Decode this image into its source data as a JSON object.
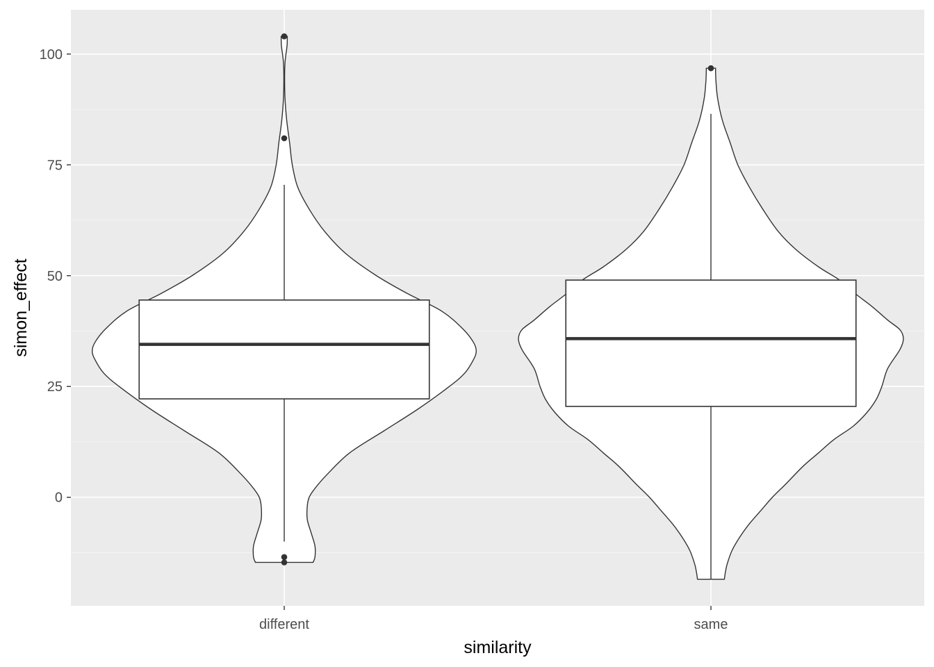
{
  "chart_data": {
    "type": "violin",
    "xlabel": "similarity",
    "ylabel": "simon_effect",
    "categories": [
      "different",
      "same"
    ],
    "ylim": [
      -24.5,
      110
    ],
    "y_ticks": [
      0,
      25,
      50,
      75,
      100
    ],
    "y_tick_labels": [
      "0",
      "25",
      "50",
      "75",
      "100"
    ],
    "grid": true,
    "legend": "none",
    "colors": {
      "panel_bg": "#ebebeb",
      "grid_major": "#ffffff",
      "grid_minor": "#f7f7f7",
      "violin_fill": "#ffffff",
      "outline": "#333333"
    },
    "groups": [
      {
        "category": "different",
        "boxplot": {
          "lower_whisker": -10,
          "q1": 22.2,
          "median": 34.5,
          "q3": 44.5,
          "upper_whisker": 70.5
        },
        "outliers": [
          104,
          81,
          -13.5,
          -14.7
        ],
        "violin_range": [
          -14.7,
          104
        ],
        "density_profile": [
          [
            -14.7,
            0.15
          ],
          [
            -13.5,
            0.16
          ],
          [
            -11,
            0.16
          ],
          [
            -8,
            0.14
          ],
          [
            -5,
            0.12
          ],
          [
            -2,
            0.12
          ],
          [
            0,
            0.13
          ],
          [
            2,
            0.16
          ],
          [
            5,
            0.22
          ],
          [
            10,
            0.34
          ],
          [
            15,
            0.52
          ],
          [
            20,
            0.7
          ],
          [
            25,
            0.86
          ],
          [
            28,
            0.94
          ],
          [
            31,
            0.985
          ],
          [
            33,
            1.0
          ],
          [
            35,
            0.985
          ],
          [
            38,
            0.93
          ],
          [
            42,
            0.82
          ],
          [
            46,
            0.64
          ],
          [
            50,
            0.48
          ],
          [
            55,
            0.32
          ],
          [
            60,
            0.21
          ],
          [
            65,
            0.13
          ],
          [
            70,
            0.07
          ],
          [
            75,
            0.042
          ],
          [
            80,
            0.028
          ],
          [
            85,
            0.013
          ],
          [
            90,
            0.004
          ],
          [
            95,
            0.002
          ],
          [
            98,
            0.004
          ],
          [
            100,
            0.009
          ],
          [
            102,
            0.015
          ],
          [
            104,
            0.016
          ]
        ]
      },
      {
        "category": "same",
        "boxplot": {
          "lower_whisker": -18.5,
          "q1": 20.5,
          "median": 35.8,
          "q3": 49,
          "upper_whisker": 86.5
        },
        "outliers": [
          96.8
        ],
        "violin_range": [
          -18.5,
          96.8
        ],
        "density_profile": [
          [
            -18.5,
            0.07
          ],
          [
            -17,
            0.075
          ],
          [
            -15,
            0.085
          ],
          [
            -12,
            0.11
          ],
          [
            -9,
            0.15
          ],
          [
            -6,
            0.2
          ],
          [
            -3,
            0.26
          ],
          [
            0,
            0.32
          ],
          [
            3,
            0.39
          ],
          [
            7,
            0.48
          ],
          [
            10,
            0.56
          ],
          [
            13,
            0.64
          ],
          [
            16,
            0.74
          ],
          [
            19,
            0.81
          ],
          [
            22,
            0.86
          ],
          [
            25,
            0.89
          ],
          [
            29,
            0.92
          ],
          [
            33,
            0.98
          ],
          [
            35,
            1.0
          ],
          [
            36.5,
            1.0
          ],
          [
            38,
            0.98
          ],
          [
            40,
            0.92
          ],
          [
            43,
            0.84
          ],
          [
            46,
            0.75
          ],
          [
            49,
            0.67
          ],
          [
            52,
            0.56
          ],
          [
            56,
            0.44
          ],
          [
            60,
            0.35
          ],
          [
            65,
            0.27
          ],
          [
            70,
            0.2
          ],
          [
            75,
            0.14
          ],
          [
            80,
            0.1
          ],
          [
            85,
            0.06
          ],
          [
            90,
            0.035
          ],
          [
            94,
            0.026
          ],
          [
            96.8,
            0.024
          ]
        ]
      }
    ]
  }
}
